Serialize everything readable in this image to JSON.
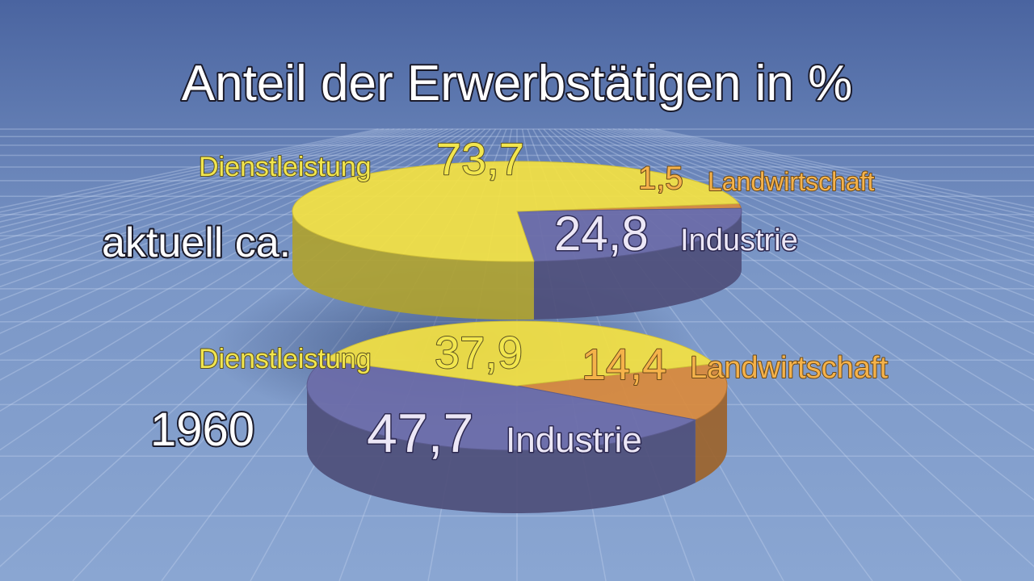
{
  "title": "Anteil der Erwerbstätigen in %",
  "colors": {
    "dienstleistung": "#f3e143",
    "industrie": "#6c6ca8",
    "landwirtschaft": "#d98a3c",
    "background": "#5c78aa"
  },
  "chart_data": [
    {
      "type": "pie",
      "label": "aktuell ca.",
      "slices": [
        {
          "name": "Dienstleistung",
          "value": 73.7,
          "value_text": "73,7"
        },
        {
          "name": "Landwirtschaft",
          "value": 1.5,
          "value_text": "1,5"
        },
        {
          "name": "Industrie",
          "value": 24.8,
          "value_text": "24,8"
        }
      ]
    },
    {
      "type": "pie",
      "label": "1960",
      "slices": [
        {
          "name": "Dienstleistung",
          "value": 37.9,
          "value_text": "37,9"
        },
        {
          "name": "Landwirtschaft",
          "value": 14.4,
          "value_text": "14,4"
        },
        {
          "name": "Industrie",
          "value": 47.7,
          "value_text": "47,7"
        }
      ]
    }
  ]
}
